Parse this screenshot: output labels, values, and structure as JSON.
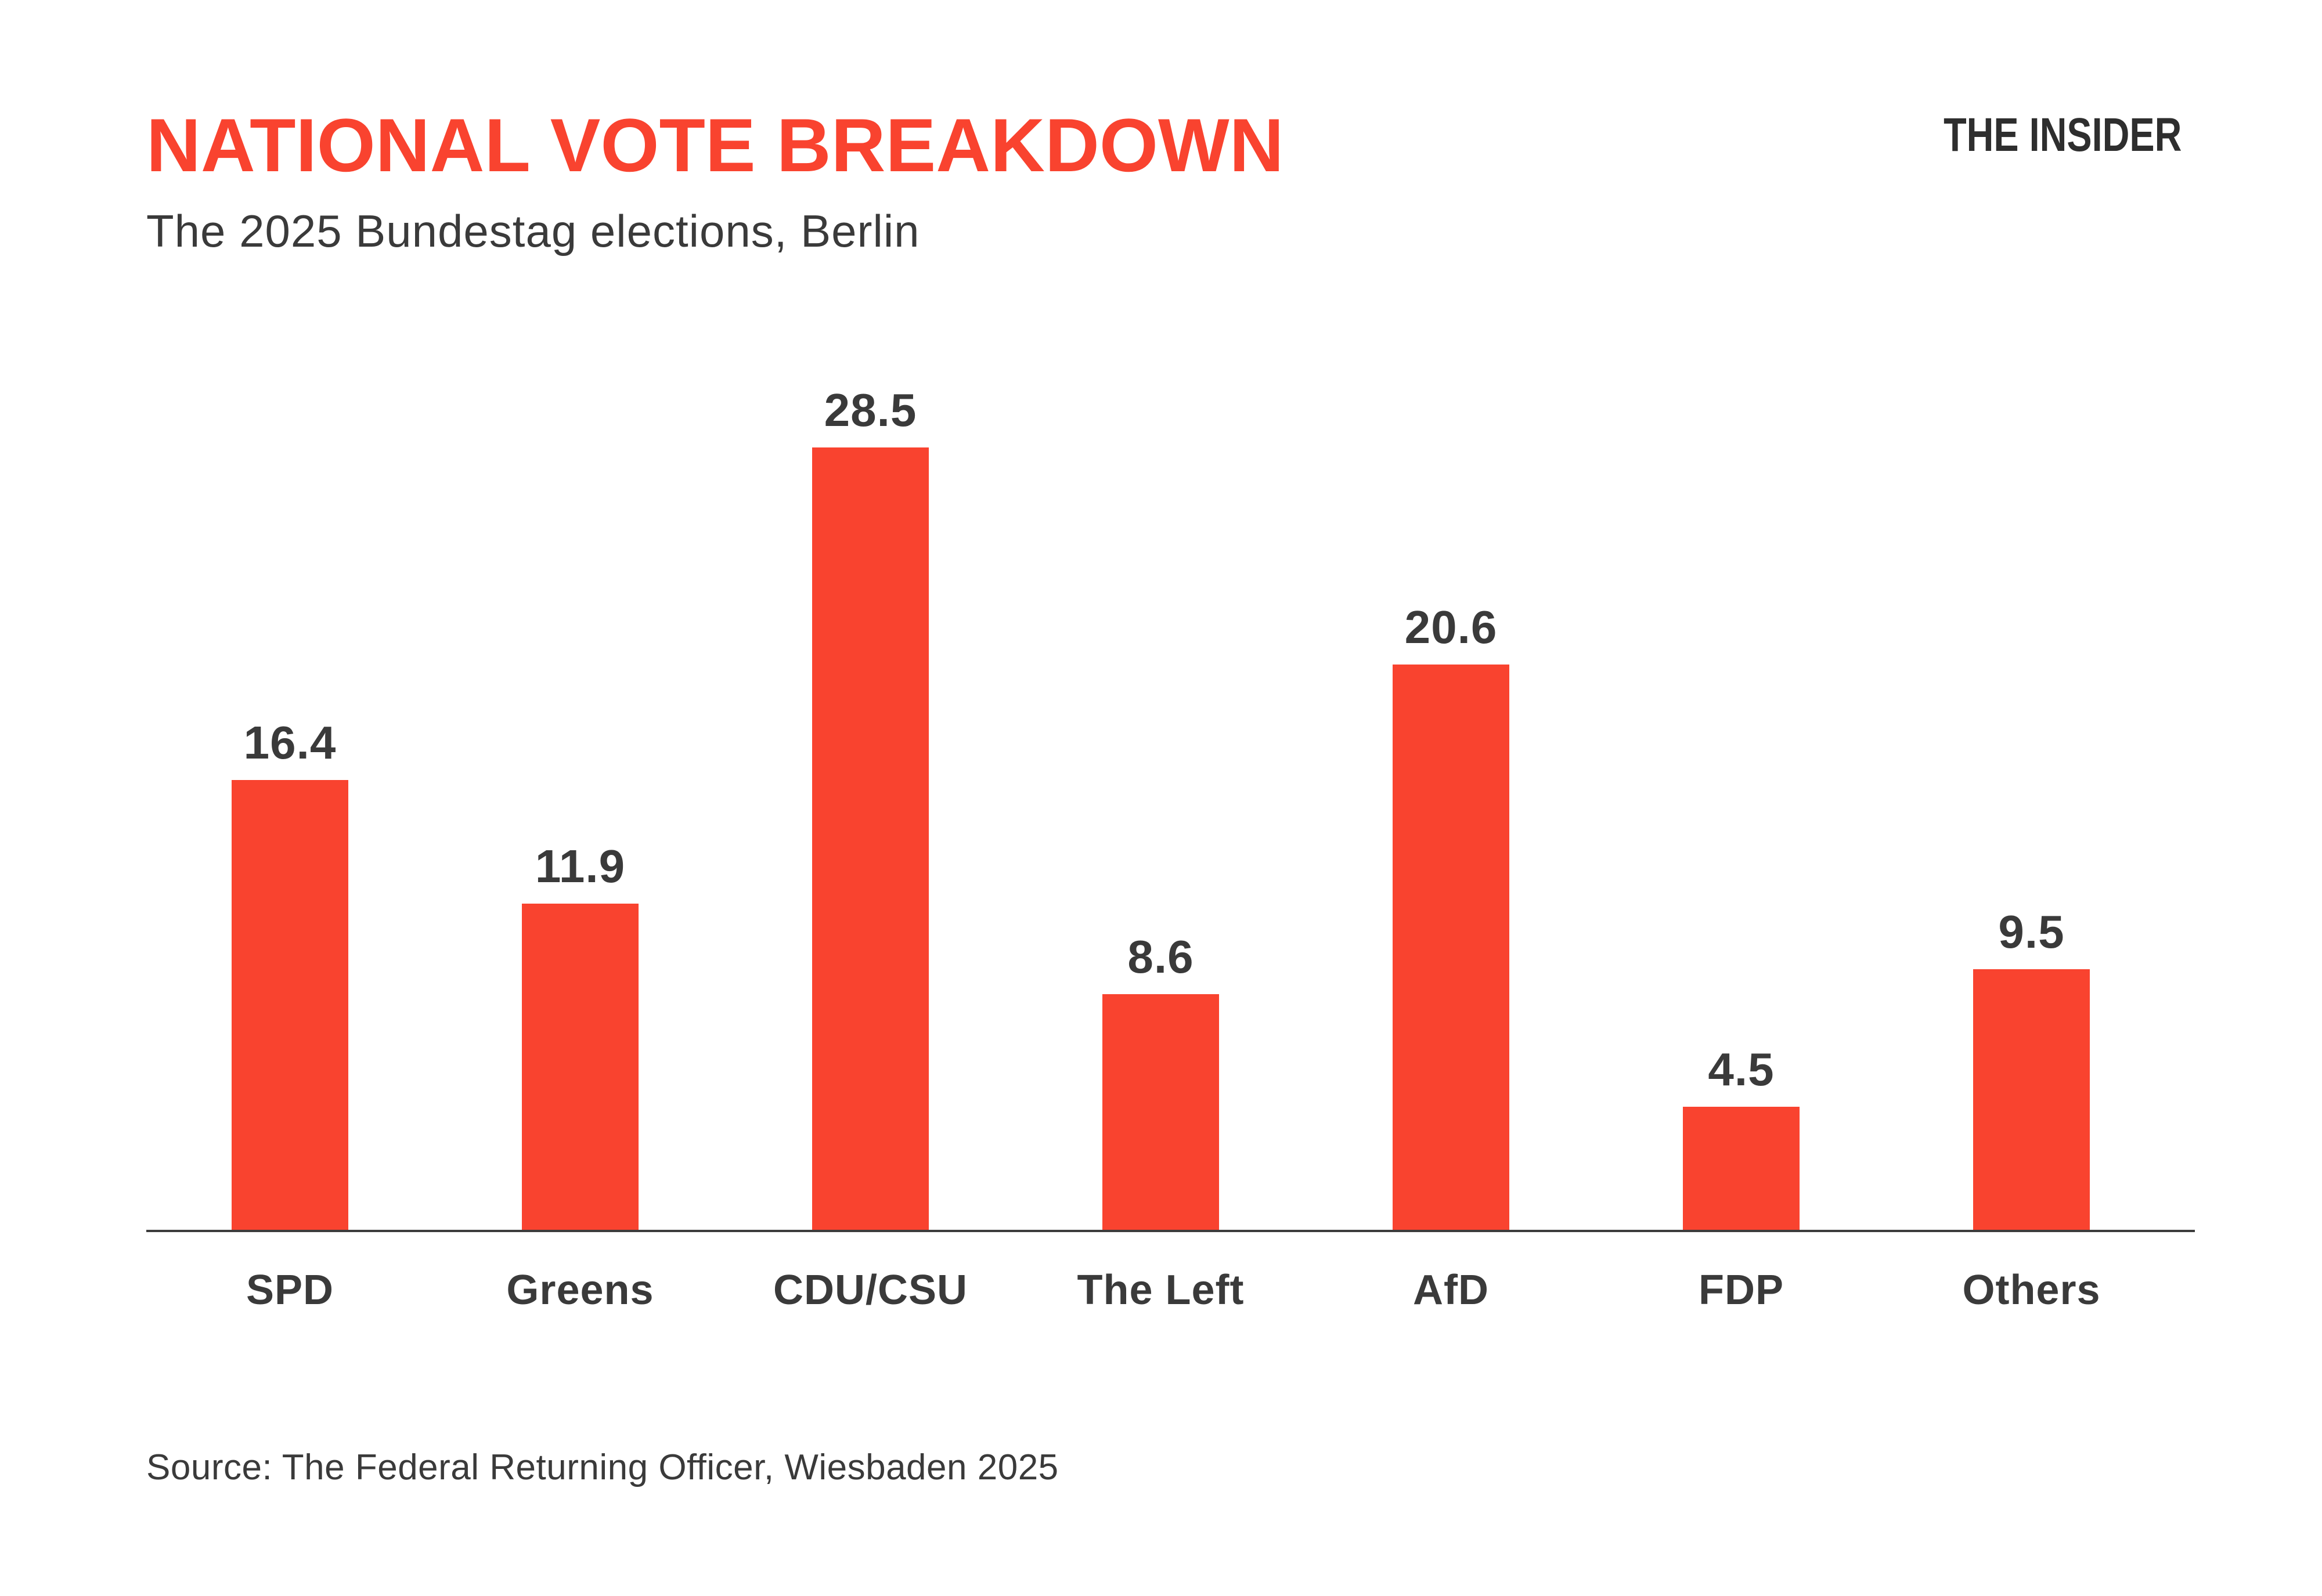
{
  "header": {
    "title": "NATIONAL VOTE BREAKDOWN",
    "subtitle": "The 2025 Bundestag elections, Berlin",
    "brand": "THE INSIDER"
  },
  "chart_data": {
    "type": "bar",
    "title": "NATIONAL VOTE BREAKDOWN",
    "subtitle": "The 2025 Bundestag elections, Berlin",
    "categories": [
      "SPD",
      "Greens",
      "CDU/CSU",
      "The Left",
      "AfD",
      "FDP",
      "Others"
    ],
    "values": [
      16.4,
      11.9,
      28.5,
      8.6,
      20.6,
      4.5,
      9.5
    ],
    "value_labels": [
      "16.4",
      "11.9",
      "28.5",
      "8.6",
      "20.6",
      "4.5",
      "9.5"
    ],
    "xlabel": "",
    "ylabel": "",
    "ylim": [
      0,
      28.5
    ],
    "grid": false,
    "legend": false,
    "bar_color": "#F9432F"
  },
  "source": "Source: The Federal Returning Officer, Wiesbaden 2025",
  "colors": {
    "accent": "#F9432F",
    "text": "#3A3A3A",
    "logo": "#2E2E2E",
    "axis": "#3C3C3C",
    "background": "#FFFFFF"
  }
}
